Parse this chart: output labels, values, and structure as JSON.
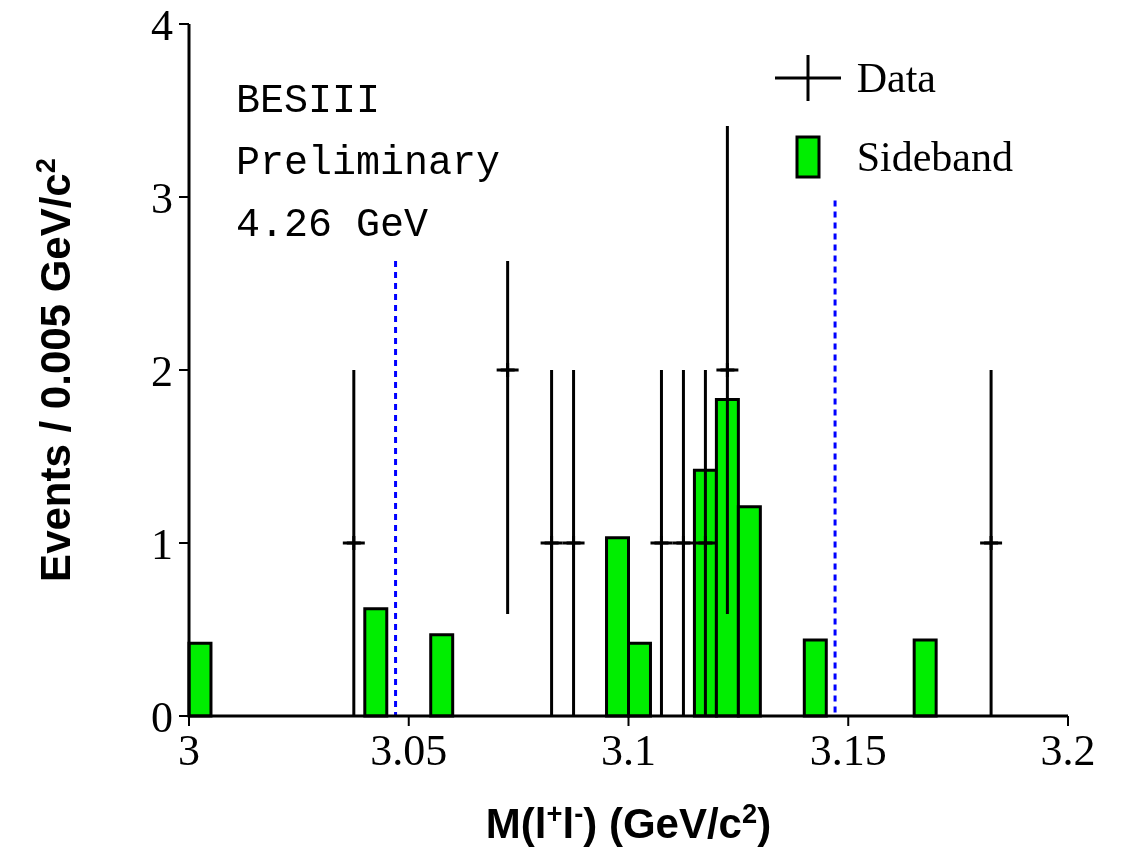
{
  "chart_data": {
    "type": "histogram",
    "xlabel": "M(l$^{+}$l$^{-}$) (GeV/c$^{2}$)",
    "ylabel": "Events / 0.005 GeV/c$^{2}$",
    "annotations": [
      "BESIII",
      "Preliminary",
      "4.26 GeV"
    ],
    "xlim": [
      3,
      3.2
    ],
    "xticks": [
      3,
      3.05,
      3.1,
      3.15,
      3.2
    ],
    "ylim": [
      0,
      4
    ],
    "yticks": [
      0,
      1,
      2,
      3,
      4
    ],
    "legend": "top right",
    "series": [
      {
        "name": "Sideband",
        "color": "#00ee00",
        "bins": [
          3.0,
          3.005,
          3.01,
          3.015,
          3.02,
          3.025,
          3.03,
          3.035,
          3.04,
          3.045,
          3.05,
          3.055,
          3.06,
          3.065,
          3.07,
          3.075,
          3.08,
          3.085,
          3.09,
          3.095,
          3.1,
          3.105,
          3.11,
          3.115,
          3.12,
          3.125,
          3.13,
          3.135,
          3.14,
          3.145,
          3.15,
          3.155,
          3.16,
          3.165,
          3.17,
          3.175,
          3.18,
          3.185,
          3.19,
          3.195,
          3.2
        ],
        "values": [
          0.42,
          0,
          0,
          0,
          0,
          0,
          0,
          0,
          0.62,
          0,
          0,
          0.47,
          0,
          0,
          0,
          0,
          0,
          0,
          0,
          1.03,
          0.42,
          0,
          0,
          1.42,
          1.83,
          1.21,
          0,
          0,
          0.44,
          0,
          0,
          0,
          0,
          0.44,
          0,
          0,
          0,
          0,
          0,
          0
        ]
      },
      {
        "name": "Data",
        "type": "scatter",
        "color": "#000000",
        "marker": "cross",
        "x": [
          3.0375,
          3.0725,
          3.0825,
          3.0875,
          3.1075,
          3.1125,
          3.1175,
          3.1225,
          3.1825
        ],
        "values": [
          1,
          2,
          1,
          1,
          1,
          1,
          1,
          2,
          1
        ],
        "errors": [
          1,
          [
            0.59,
            2.63
          ],
          1,
          1,
          1,
          1,
          1,
          1.41,
          1
        ],
        "xerrors": [
          0.0025,
          0.0025,
          0.0025,
          0.0025,
          0.0025,
          0.0025,
          0.0025,
          0.0025,
          0.0025
        ]
      },
      {
        "type": "line",
        "color": "#0000ff",
        "line_style": "dashed",
        "x": [
          3.047,
          3.047
        ],
        "values": [
          2.63,
          0
        ]
      },
      {
        "type": "line",
        "color": "#0000ff",
        "line_style": "dashed",
        "x": [
          3.147,
          3.147
        ],
        "values": [
          2.98,
          0
        ]
      }
    ]
  }
}
